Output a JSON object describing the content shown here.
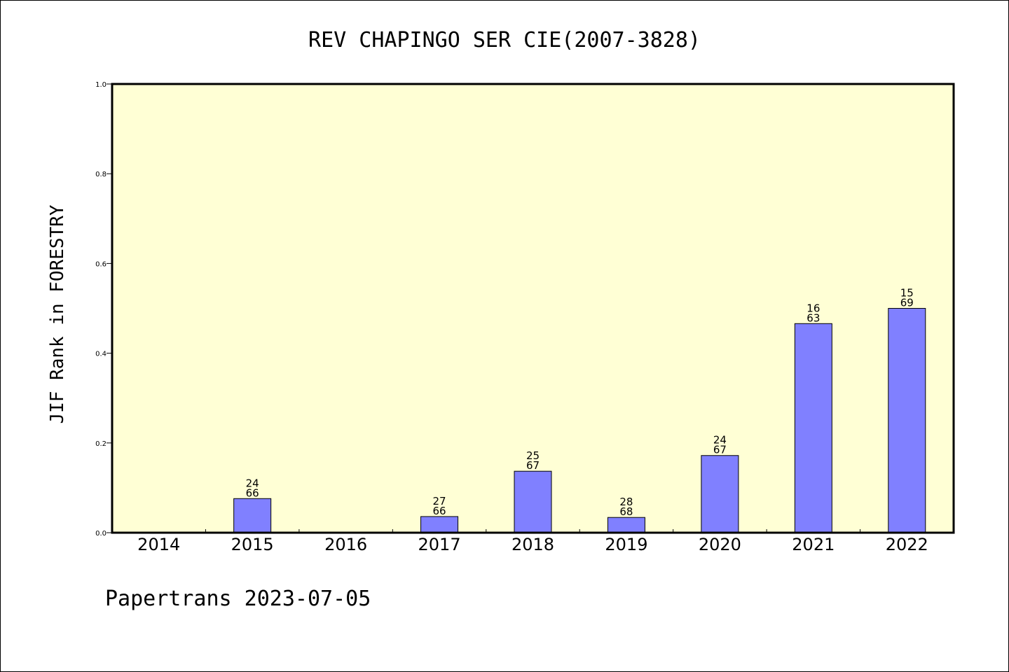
{
  "chart_data": {
    "type": "bar",
    "title": "REV CHAPINGO SER CIE(2007-3828)",
    "xlabel": "",
    "ylabel": "JIF Rank in FORESTRY",
    "footer": "Papertrans 2023-07-05",
    "ylim": [
      0,
      1.0
    ],
    "yticks": [
      "0.0",
      "0.2",
      "0.4",
      "0.6",
      "0.8",
      "1.0"
    ],
    "categories": [
      "2014",
      "2015",
      "2016",
      "2017",
      "2018",
      "2019",
      "2020",
      "2021",
      "2022"
    ],
    "values": [
      null,
      0.076,
      null,
      0.036,
      0.137,
      0.034,
      0.172,
      0.466,
      0.5
    ],
    "labels": [
      null,
      [
        "24",
        "66"
      ],
      null,
      [
        "27",
        "66"
      ],
      [
        "25",
        "67"
      ],
      [
        "28",
        "68"
      ],
      [
        "24",
        "67"
      ],
      [
        "16",
        "63"
      ],
      [
        "15",
        "69"
      ]
    ],
    "grid": false,
    "colors": {
      "plot_background": "#ffffd5",
      "bar_fill": "#8080ff",
      "bar_stroke": "#000000"
    }
  }
}
